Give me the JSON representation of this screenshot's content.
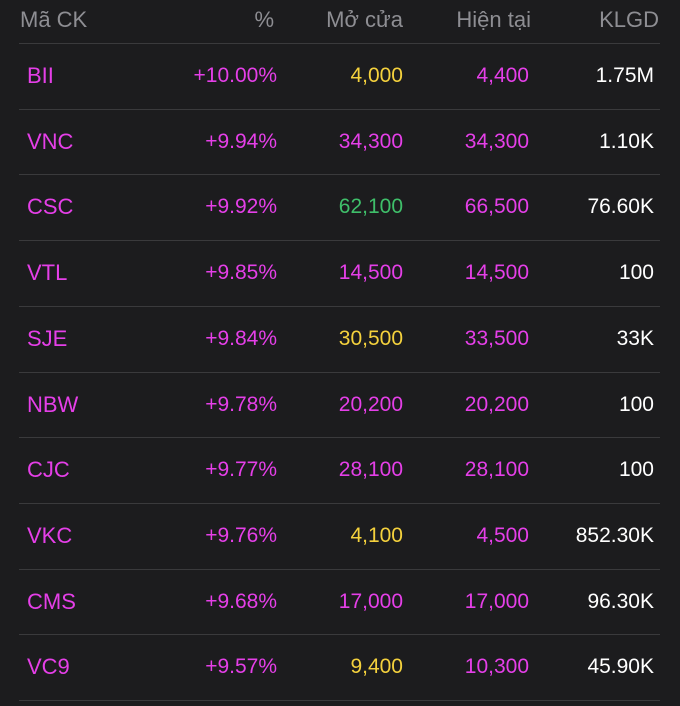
{
  "header": {
    "code": "Mã CK",
    "pct": "%",
    "open": "Mở cửa",
    "current": "Hiện tại",
    "volume": "KLGD"
  },
  "colors": {
    "ceiling": "#e53fe8",
    "reference": "#f4d13d",
    "increase": "#3fbf6a",
    "muted": "#8e8e93",
    "background": "#1c1c1e"
  },
  "rows": [
    {
      "code": "BII",
      "pct": "+10.00%",
      "open": "4,000",
      "open_color": "yellow",
      "current": "4,400",
      "volume": "1.75M"
    },
    {
      "code": "VNC",
      "pct": "+9.94%",
      "open": "34,300",
      "open_color": "magenta",
      "current": "34,300",
      "volume": "1.10K"
    },
    {
      "code": "CSC",
      "pct": "+9.92%",
      "open": "62,100",
      "open_color": "green",
      "current": "66,500",
      "volume": "76.60K"
    },
    {
      "code": "VTL",
      "pct": "+9.85%",
      "open": "14,500",
      "open_color": "magenta",
      "current": "14,500",
      "volume": "100"
    },
    {
      "code": "SJE",
      "pct": "+9.84%",
      "open": "30,500",
      "open_color": "yellow",
      "current": "33,500",
      "volume": "33K"
    },
    {
      "code": "NBW",
      "pct": "+9.78%",
      "open": "20,200",
      "open_color": "magenta",
      "current": "20,200",
      "volume": "100"
    },
    {
      "code": "CJC",
      "pct": "+9.77%",
      "open": "28,100",
      "open_color": "magenta",
      "current": "28,100",
      "volume": "100"
    },
    {
      "code": "VKC",
      "pct": "+9.76%",
      "open": "4,100",
      "open_color": "yellow",
      "current": "4,500",
      "volume": "852.30K"
    },
    {
      "code": "CMS",
      "pct": "+9.68%",
      "open": "17,000",
      "open_color": "magenta",
      "current": "17,000",
      "volume": "96.30K"
    },
    {
      "code": "VC9",
      "pct": "+9.57%",
      "open": "9,400",
      "open_color": "yellow",
      "current": "10,300",
      "volume": "45.90K"
    }
  ]
}
